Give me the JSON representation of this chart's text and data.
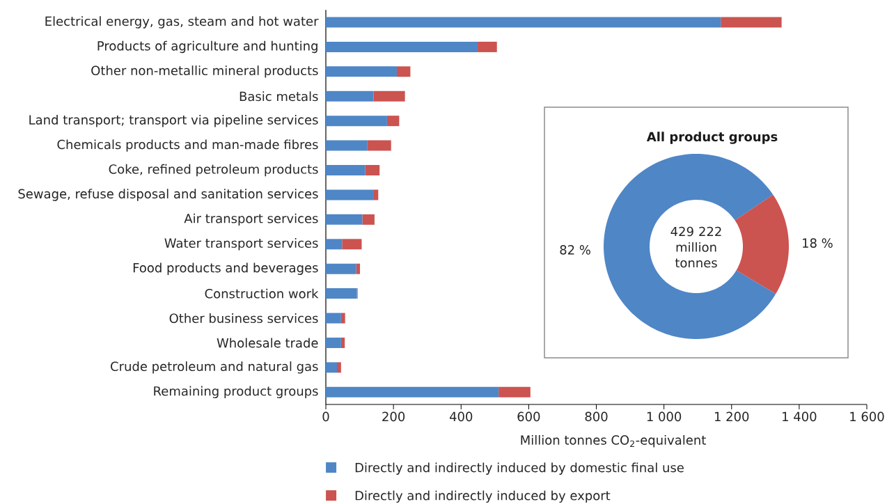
{
  "chart_data": [
    {
      "type": "bar",
      "orientation": "horizontal",
      "stacked": true,
      "categories": [
        "Electrical energy, gas, steam and hot water",
        "Products of agriculture and hunting",
        "Other non-metallic mineral products",
        "Basic metals",
        "Land transport; transport via pipeline services",
        "Chemicals products and man-made fibres",
        "Coke, refined petroleum products",
        "Sewage, refuse disposal and sanitation services",
        "Air transport services",
        "Water transport services",
        "Food products and beverages",
        "Construction work",
        "Other business services",
        "Wholesale trade",
        "Crude petroleum and natural gas",
        "Remaining product groups"
      ],
      "series": [
        {
          "name": "Directly and indirectly induced by domestic final use",
          "color": "#4f86c6",
          "values": [
            1168,
            449,
            210,
            141,
            181,
            122,
            116,
            142,
            108,
            48,
            90,
            92,
            45,
            45,
            33,
            511
          ]
        },
        {
          "name": "Directly and indirectly induced by export",
          "color": "#cb5350",
          "values": [
            180,
            57,
            40,
            93,
            36,
            71,
            43,
            13,
            36,
            58,
            11,
            2,
            12,
            11,
            12,
            94
          ]
        }
      ],
      "xlabel": "Million tonnes CO$_{2}$-equivalent",
      "xlim": [
        0,
        1600
      ],
      "xticks": [
        0,
        200,
        400,
        600,
        800,
        {
          "value": 1000,
          "label": "1 000"
        },
        {
          "value": 1200,
          "label": "1 200"
        },
        {
          "value": 1400,
          "label": "1 400"
        },
        {
          "value": 1600,
          "label": "1 600"
        }
      ],
      "legend": "bottom"
    },
    {
      "type": "donut",
      "title": "All product groups",
      "categories": [
        null,
        null
      ],
      "values": [
        82,
        18
      ],
      "colors": [
        "#4f86c6",
        "#cb5350"
      ],
      "value_labels": [
        "82 %",
        "18 %"
      ],
      "annotations": [
        "429 222 million tonnes"
      ]
    }
  ]
}
